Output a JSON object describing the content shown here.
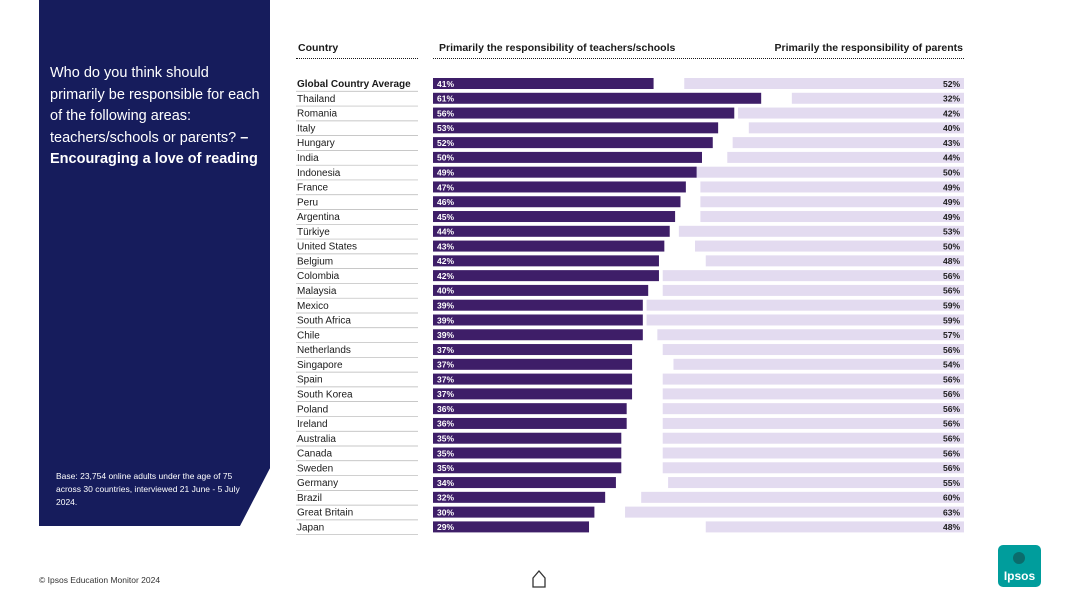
{
  "question": {
    "line": "Who do you think should primarily be responsible for each of the following areas: teachers/schools or parents?",
    "emphasis": "– Encouraging a love of reading"
  },
  "base_note": "Base: 23,754 online adults under the age of 75 across 30 countries, interviewed 21 June - 5 July 2024.",
  "headers": {
    "country": "Country",
    "teachers": "Primarily the responsibility of teachers/schools",
    "parents": "Primarily the responsibility of parents"
  },
  "footer": "© Ipsos Education Monitor 2024",
  "logo_text": "Ipsos",
  "colors": {
    "panel": "#161c5c",
    "teachers_bar": "#3e1e68",
    "parents_bar": "#e3dbf0",
    "logo": "#009d9c"
  },
  "chart_data": {
    "type": "bar",
    "title": "Who do you think should primarily be responsible for encouraging a love of reading: teachers/schools or parents?",
    "categories": [
      "Global Country Average",
      "Thailand",
      "Romania",
      "Italy",
      "Hungary",
      "India",
      "Indonesia",
      "France",
      "Peru",
      "Argentina",
      "Türkiye",
      "United States",
      "Belgium",
      "Colombia",
      "Malaysia",
      "Mexico",
      "South Africa",
      "Chile",
      "Netherlands",
      "Singapore",
      "Spain",
      "South Korea",
      "Poland",
      "Ireland",
      "Australia",
      "Canada",
      "Sweden",
      "Germany",
      "Brazil",
      "Great Britain",
      "Japan"
    ],
    "series": [
      {
        "name": "Primarily the responsibility of teachers/schools",
        "values": [
          41,
          61,
          56,
          53,
          52,
          50,
          49,
          47,
          46,
          45,
          44,
          43,
          42,
          42,
          40,
          39,
          39,
          39,
          37,
          37,
          37,
          37,
          36,
          36,
          35,
          35,
          35,
          34,
          32,
          30,
          29
        ]
      },
      {
        "name": "Primarily the responsibility of parents",
        "values": [
          52,
          32,
          42,
          40,
          43,
          44,
          50,
          49,
          49,
          49,
          53,
          50,
          48,
          56,
          56,
          59,
          59,
          57,
          56,
          54,
          56,
          56,
          56,
          56,
          56,
          56,
          56,
          55,
          60,
          63,
          48
        ]
      }
    ],
    "unit": "%",
    "ylim": [
      0,
      100
    ]
  }
}
